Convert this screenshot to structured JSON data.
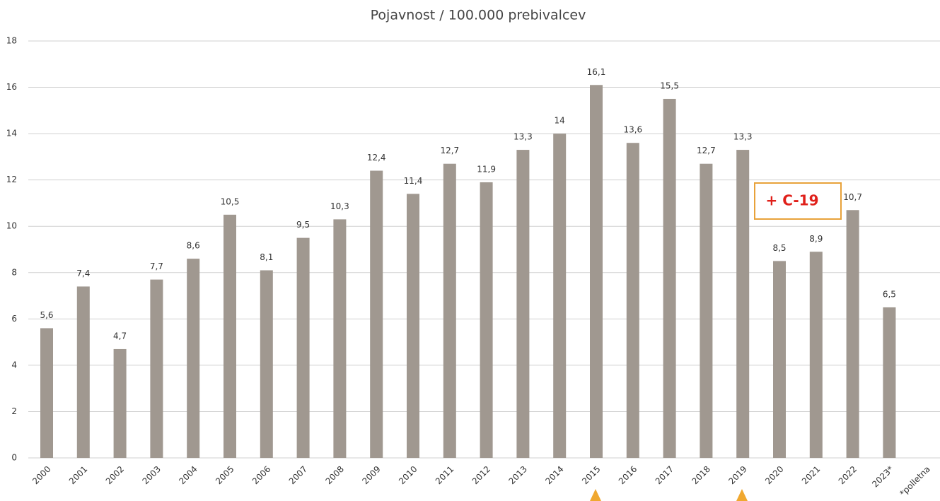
{
  "chart_data": {
    "type": "bar",
    "title": "Pojavnost / 100.000 prebivalcev",
    "categories": [
      "2000",
      "2001",
      "2002",
      "2003",
      "2004",
      "2005",
      "2006",
      "2007",
      "2008",
      "2009",
      "2010",
      "2011",
      "2012",
      "2013",
      "2014",
      "2015",
      "2016",
      "2017",
      "2018",
      "2019",
      "2020",
      "2021",
      "2022",
      "2023*",
      "*polletna"
    ],
    "values": [
      5.6,
      7.4,
      4.7,
      7.7,
      8.6,
      10.5,
      8.1,
      9.5,
      10.3,
      12.4,
      11.4,
      12.7,
      11.9,
      13.3,
      14,
      16.1,
      13.6,
      15.5,
      12.7,
      13.3,
      8.5,
      8.9,
      10.7,
      6.5,
      null
    ],
    "value_labels": [
      "5,6",
      "7,4",
      "4,7",
      "7,7",
      "8,6",
      "10,5",
      "8,1",
      "9,5",
      "10,3",
      "12,4",
      "11,4",
      "12,7",
      "11,9",
      "13,3",
      "14",
      "16,1",
      "13,6",
      "15,5",
      "12,7",
      "13,3",
      "8,5",
      "8,9",
      "10,7",
      "6,5",
      null
    ],
    "color": "#a09890",
    "ylim": [
      0,
      18
    ],
    "yticks": [
      0,
      2,
      4,
      6,
      8,
      10,
      12,
      14,
      16,
      18
    ],
    "grid": true,
    "annotations": [
      "+ C-19"
    ]
  }
}
